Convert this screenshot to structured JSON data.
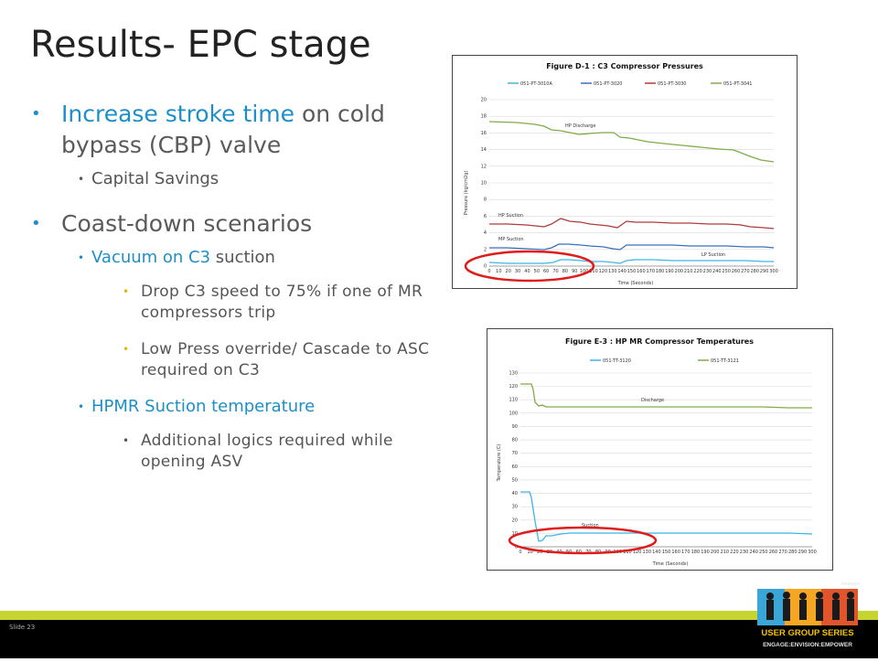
{
  "slide": {
    "title": "Results- EPC stage",
    "slide_number": "Slide 23"
  },
  "bullets": {
    "b1": {
      "highlight": "Increase stroke time",
      "rest": " on cold bypass (CBP) valve"
    },
    "b1_sub": "Capital Savings",
    "b2": "Coast-down scenarios",
    "b2_sub1": {
      "highlight": "Vacuum on C3",
      "rest": " suction"
    },
    "b2_sub1_items": [
      "Drop C3 speed to 75% if one of MR compressors trip",
      "Low Press override/ Cascade to ASC required on C3"
    ],
    "b2_sub2": "HPMR Suction temperature",
    "b2_sub2_items": [
      "Additional logics required while opening ASV"
    ]
  },
  "figure1": {
    "title": "Figure D-1 : C3 Compressor Pressures",
    "legend": [
      "051-PT-3010A",
      "051-PT-3020",
      "051-PT-3030",
      "051-PT-3041"
    ],
    "ylabel": "Pressure (kg/cm2g)",
    "xlabel": "Time (Seconds)",
    "annotations": [
      "HP Discharge",
      "HP Suction",
      "MP Suction",
      "LP Suction"
    ],
    "yticks": [
      "0",
      "2",
      "4",
      "6",
      "8",
      "10",
      "12",
      "14",
      "16",
      "18",
      "20"
    ],
    "xticks": [
      "0",
      "10",
      "20",
      "30",
      "40",
      "50",
      "60",
      "70",
      "80",
      "90",
      "100",
      "110",
      "120",
      "130",
      "140",
      "150",
      "160",
      "170",
      "180",
      "190",
      "200",
      "210",
      "220",
      "230",
      "240",
      "250",
      "260",
      "270",
      "280",
      "290",
      "300"
    ]
  },
  "figure2": {
    "title": "Figure E-3 : HP MR Compressor Temperatures",
    "legend": [
      "051-TT-3120",
      "051-TT-3121"
    ],
    "ylabel": "Temperature (C)",
    "xlabel": "Time (Seconds)",
    "annotations": [
      "Discharge",
      "Suction"
    ],
    "yticks": [
      "0",
      "10",
      "20",
      "30",
      "40",
      "50",
      "60",
      "70",
      "80",
      "90",
      "100",
      "110",
      "120",
      "130"
    ],
    "xticks": [
      "0",
      "10",
      "20",
      "30",
      "40",
      "50",
      "60",
      "70",
      "80",
      "90",
      "100",
      "110",
      "120",
      "130",
      "140",
      "150",
      "160",
      "170",
      "180",
      "190",
      "200",
      "210",
      "220",
      "230",
      "240",
      "250",
      "260",
      "270",
      "280",
      "290",
      "300"
    ]
  },
  "logo": {
    "top_text": "invensys",
    "line1": "USER GROUP SERIES",
    "line2": "ENGAGE:ENVISION:EMPOWER"
  },
  "colors": {
    "accent_blue": "#1e8fc6",
    "band_green": "#c5d430",
    "series_pt3010a": "#3fb5e6",
    "series_pt3020": "#3a6fc0",
    "series_pt3030": "#b03a3a",
    "series_pt3041": "#7fac4a",
    "circle_red": "#e01b1b"
  }
}
